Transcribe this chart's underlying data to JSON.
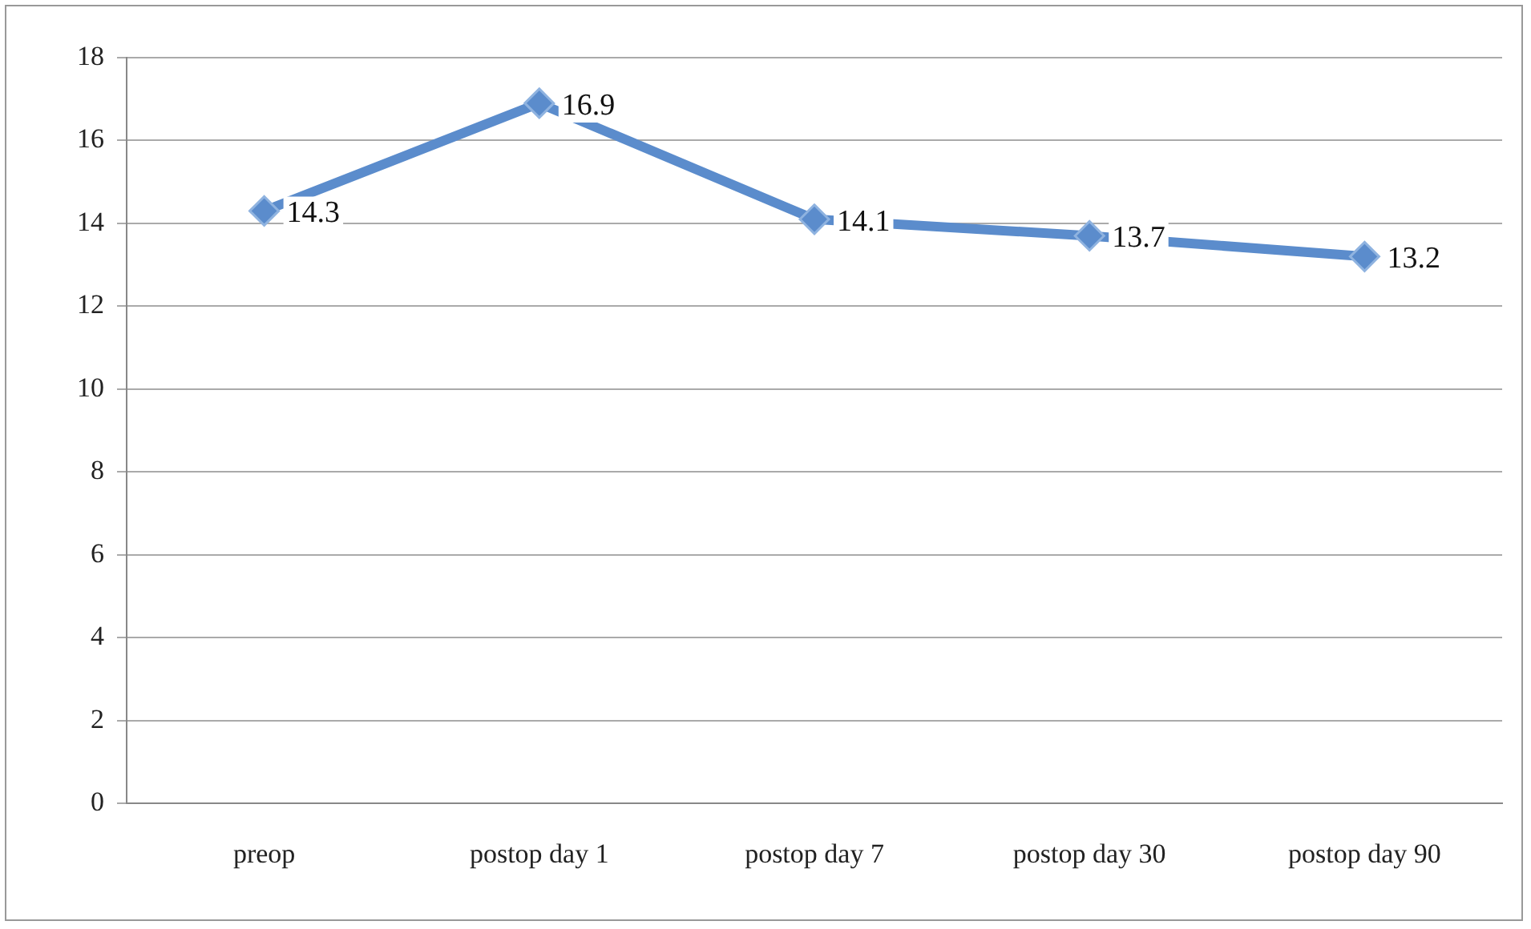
{
  "chart_data": {
    "type": "line",
    "categories": [
      "preop",
      "postop day 1",
      "postop day 7",
      "postop day 30",
      "postop day 90"
    ],
    "series": [
      {
        "color": "#5b8ccc",
        "values": [
          14.3,
          16.9,
          14.1,
          13.7,
          13.2
        ]
      }
    ],
    "ylim": [
      0,
      18
    ],
    "yticks": [
      0,
      2,
      4,
      6,
      8,
      10,
      12,
      14,
      16,
      18
    ],
    "grid": "y",
    "legend": false,
    "marker": "diamond",
    "line_style": "solid",
    "data_labels": true
  }
}
